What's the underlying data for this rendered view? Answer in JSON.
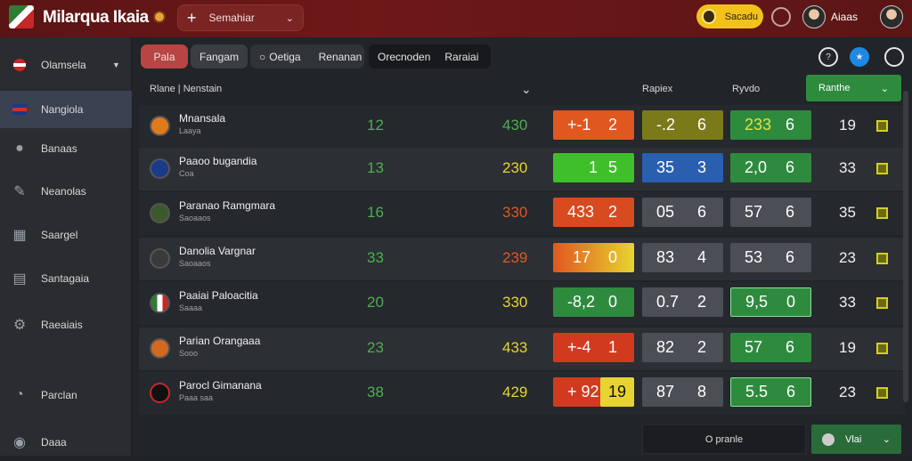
{
  "header": {
    "brand": "Milarqua Ikaia",
    "select_label": "Semahiar",
    "pill_label": "Sacadu",
    "user_name": "Aiaas"
  },
  "sidebar": {
    "items": [
      {
        "label": "Olamsela",
        "icon": "flag-icon"
      },
      {
        "label": "Nangiola",
        "icon": "flag-icon"
      },
      {
        "label": "Banaas",
        "icon": "people-icon"
      },
      {
        "label": "Neanolas",
        "icon": "pencil-icon"
      },
      {
        "label": "Saargel",
        "icon": "grid-icon"
      },
      {
        "label": "Santagaia",
        "icon": "document-icon"
      },
      {
        "label": "Raeaiais",
        "icon": "gear-icon"
      },
      {
        "label": "Parclan",
        "icon": "chat-icon"
      },
      {
        "label": "Daaa",
        "icon": "user-icon"
      }
    ]
  },
  "tabs": [
    {
      "label": "Pala"
    },
    {
      "label": "Fangam"
    },
    {
      "label": "Oetiga"
    },
    {
      "label": "Renanan"
    },
    {
      "label": "Orecnoden"
    },
    {
      "label": "Raraiai"
    }
  ],
  "table": {
    "headers": {
      "team": "Rlane",
      "team2": "Nenstain",
      "col_a": "Rapiex",
      "col_b": "Ryvdo",
      "filter": "Ranthe"
    },
    "rows": [
      {
        "team": "Mnansala",
        "sub": "Laaya",
        "v1": "12",
        "v2": "430",
        "c1a": "+-1",
        "c1b": "2",
        "c2a": "-.2",
        "c2b": "6",
        "c3a": "233",
        "c3b": "6",
        "v3": "19"
      },
      {
        "team": "Paaoo bugandia",
        "sub": "Coa",
        "v1": "13",
        "v2": "230",
        "c1a": "1",
        "c1b": "5",
        "c2a": "35",
        "c2b": "3",
        "c3a": "2,0",
        "c3b": "6",
        "v3": "33"
      },
      {
        "team": "Paranao Ramgmara",
        "sub": "Saoaaos",
        "v1": "16",
        "v2": "330",
        "c1a": "433",
        "c1b": "2",
        "c2a": "05",
        "c2b": "6",
        "c3a": "57",
        "c3b": "6",
        "v3": "35"
      },
      {
        "team": "Danolia Vargnar",
        "sub": "Saoaaos",
        "v1": "33",
        "v2": "239",
        "c1a": "17",
        "c1b": "0",
        "c2a": "83",
        "c2b": "4",
        "c3a": "53",
        "c3b": "6",
        "v3": "23"
      },
      {
        "team": "Paaiai Paloacitia",
        "sub": "Saaaa",
        "v1": "20",
        "v2": "330",
        "c1a": "-8,2",
        "c1b": "0",
        "c2a": "0.7",
        "c2b": "2",
        "c3a": "9,5",
        "c3b": "0",
        "v3": "33"
      },
      {
        "team": "Parian Orangaaa",
        "sub": "Sooo",
        "v1": "23",
        "v2": "433",
        "c1a": "+-4",
        "c1b": "1",
        "c2a": "82",
        "c2b": "2",
        "c3a": "57",
        "c3b": "6",
        "v3": "19"
      },
      {
        "team": "Parocl Gimanana",
        "sub": "Paaa saa",
        "v1": "38",
        "v2": "429",
        "c1a": "+ 92",
        "c1b": "19",
        "c2a": "87",
        "c2b": "8",
        "c3a": "5.5",
        "c3b": "6",
        "v3": "23"
      }
    ]
  },
  "footer": {
    "input_label": "O pranle",
    "button_label": "Vlai"
  },
  "colors": {
    "topbar": "#6e1818",
    "green": "#2e8b3e",
    "orange": "#e0571f",
    "yellow": "#e8d430",
    "blue": "#2a5fb0",
    "gray": "#4b4e54"
  }
}
